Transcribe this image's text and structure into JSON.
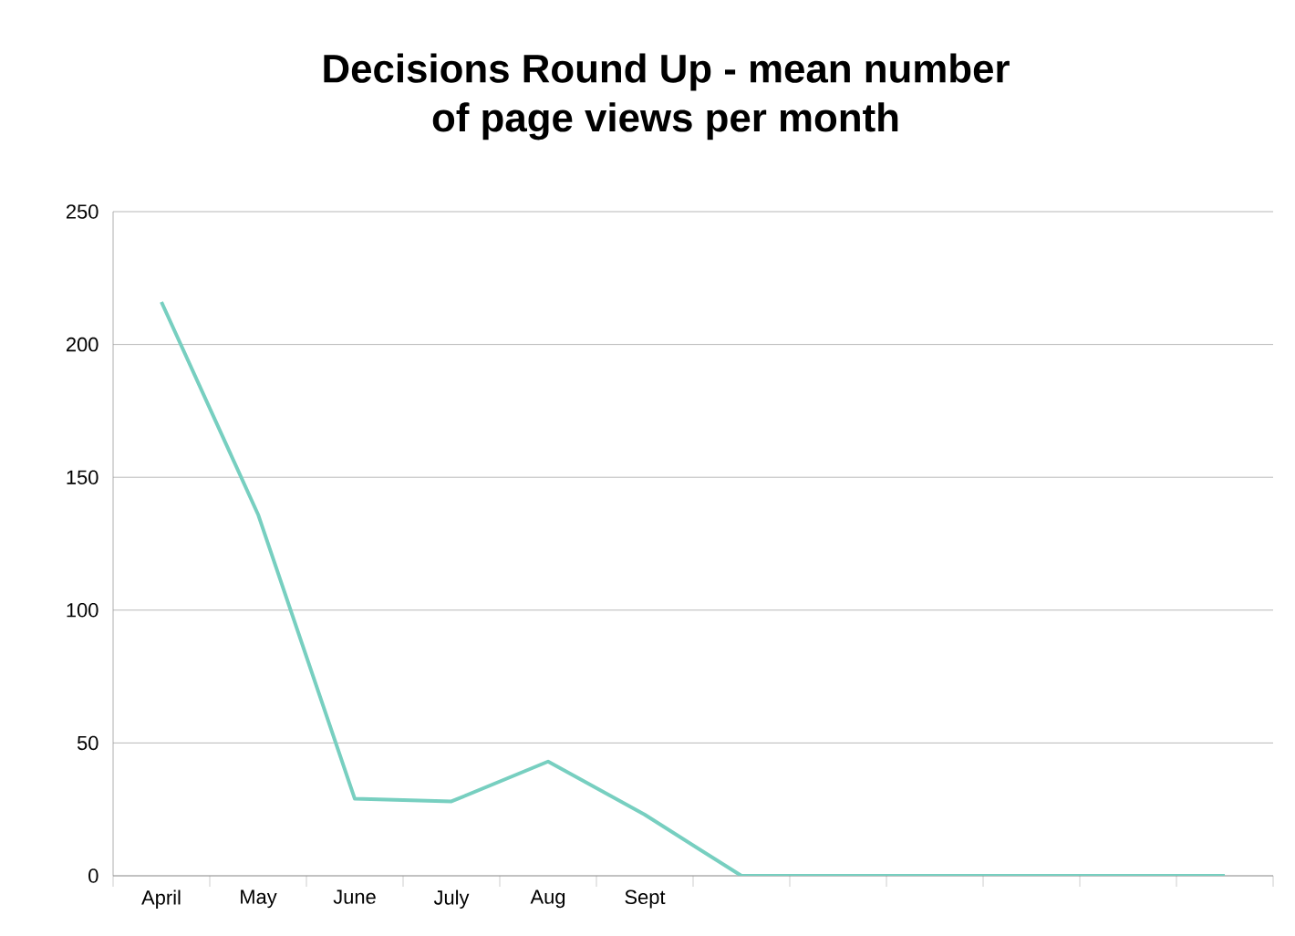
{
  "chart_data": {
    "type": "line",
    "title": "Decisions Round Up - mean number\nof page views per month",
    "categories": [
      "April",
      "May",
      "June",
      "July",
      "Aug",
      "Sept",
      null,
      null,
      null,
      null,
      null,
      null
    ],
    "values": [
      216,
      136,
      29,
      28,
      43,
      23,
      0,
      0,
      0,
      0,
      0,
      0
    ],
    "color": "#77cfc0",
    "ylim": [
      0,
      250
    ],
    "yticks": [
      0,
      50,
      100,
      150,
      200,
      250
    ],
    "grid": "y",
    "marker": "none",
    "line_style": "solid"
  }
}
